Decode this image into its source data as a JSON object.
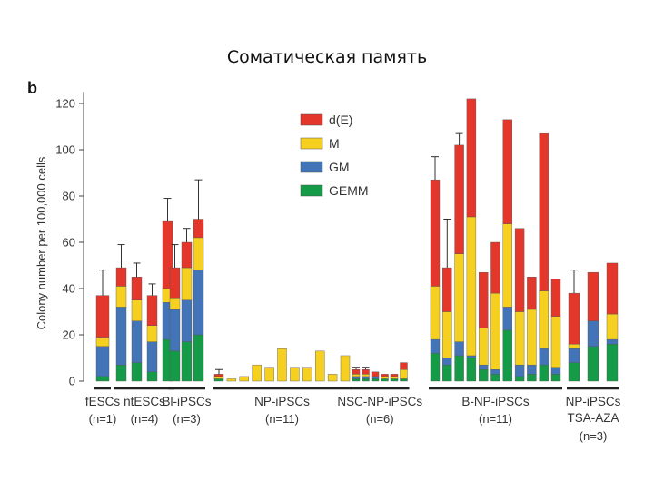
{
  "slide": {
    "title": "Соматическая память"
  },
  "chart_data": {
    "type": "bar",
    "stacked": true,
    "panel_label": "b",
    "ylabel": "Colony number per 100,000 cells",
    "ylim": [
      0,
      125
    ],
    "yticks": [
      0,
      20,
      40,
      60,
      80,
      100,
      120
    ],
    "grid": false,
    "legend_position": "top-center",
    "series": [
      {
        "name": "d(E)",
        "color": "#e2372a"
      },
      {
        "name": "M",
        "color": "#f5d020"
      },
      {
        "name": "GM",
        "color": "#4474b8"
      },
      {
        "name": "GEMM",
        "color": "#159a48"
      }
    ],
    "groups": [
      {
        "name": "fESCs",
        "n": "(n=1)",
        "bars": [
          {
            "GEMM": 2,
            "GM": 13,
            "M": 4,
            "dE": 18,
            "err": 48
          }
        ]
      },
      {
        "name": "ntESCs",
        "n": "(n=4)",
        "bars": [
          {
            "GEMM": 7,
            "GM": 25,
            "M": 9,
            "dE": 8,
            "err": 59
          },
          {
            "GEMM": 8,
            "GM": 18,
            "M": 9,
            "dE": 10,
            "err": 51
          },
          {
            "GEMM": 4,
            "GM": 13,
            "M": 7,
            "dE": 13,
            "err": 42
          },
          {
            "GEMM": 18,
            "GM": 16,
            "M": 6,
            "dE": 29,
            "err": 79
          }
        ]
      },
      {
        "name": "Bl-iPSCs",
        "n": "(n=3)",
        "bars": [
          {
            "GEMM": 13,
            "GM": 18,
            "M": 5,
            "dE": 13,
            "err": 59
          },
          {
            "GEMM": 17,
            "GM": 18,
            "M": 14,
            "dE": 11,
            "err": 66
          },
          {
            "GEMM": 20,
            "GM": 28,
            "M": 14,
            "dE": 8,
            "err": 87
          }
        ]
      },
      {
        "name": "NP-iPSCs",
        "n": "(n=11)",
        "bars": [
          {
            "GEMM": 1,
            "GM": 0,
            "M": 1,
            "dE": 1,
            "err": 5
          },
          {
            "GEMM": 0,
            "GM": 0,
            "M": 1,
            "dE": 0
          },
          {
            "GEMM": 0,
            "GM": 0,
            "M": 2,
            "dE": 0
          },
          {
            "GEMM": 0,
            "GM": 0,
            "M": 7,
            "dE": 0
          },
          {
            "GEMM": 0,
            "GM": 0,
            "M": 6,
            "dE": 0
          },
          {
            "GEMM": 0,
            "GM": 0,
            "M": 14,
            "dE": 0
          },
          {
            "GEMM": 0,
            "GM": 0,
            "M": 6,
            "dE": 0
          },
          {
            "GEMM": 0,
            "GM": 0,
            "M": 6,
            "dE": 0
          },
          {
            "GEMM": 0,
            "GM": 0,
            "M": 13,
            "dE": 0
          },
          {
            "GEMM": 0,
            "GM": 0,
            "M": 3,
            "dE": 0
          },
          {
            "GEMM": 0,
            "GM": 0,
            "M": 11,
            "dE": 0
          }
        ]
      },
      {
        "name": "NSC-NP-iPSCs",
        "n": "(n=6)",
        "bars": [
          {
            "GEMM": 1,
            "GM": 1,
            "M": 1,
            "dE": 2,
            "err": 6
          },
          {
            "GEMM": 1,
            "GM": 1,
            "M": 1,
            "dE": 2,
            "err": 6
          },
          {
            "GEMM": 1,
            "GM": 1,
            "M": 0,
            "dE": 2
          },
          {
            "GEMM": 1,
            "GM": 0,
            "M": 1,
            "dE": 1
          },
          {
            "GEMM": 1,
            "GM": 0,
            "M": 1,
            "dE": 1
          },
          {
            "GEMM": 1,
            "GM": 0,
            "M": 4,
            "dE": 3
          }
        ]
      },
      {
        "name": "B-NP-iPSCs",
        "n": "(n=11)",
        "bars": [
          {
            "GEMM": 12,
            "GM": 6,
            "M": 23,
            "dE": 46,
            "err": 97
          },
          {
            "GEMM": 7,
            "GM": 3,
            "M": 20,
            "dE": 19,
            "err": 70
          },
          {
            "GEMM": 11,
            "GM": 6,
            "M": 38,
            "dE": 47,
            "err": 107
          },
          {
            "GEMM": 10,
            "GM": 1,
            "M": 60,
            "dE": 51
          },
          {
            "GEMM": 5,
            "GM": 2,
            "M": 16,
            "dE": 24
          },
          {
            "GEMM": 3,
            "GM": 2,
            "M": 33,
            "dE": 22
          },
          {
            "GEMM": 22,
            "GM": 10,
            "M": 36,
            "dE": 45
          },
          {
            "GEMM": 2,
            "GM": 5,
            "M": 23,
            "dE": 36
          },
          {
            "GEMM": 3,
            "GM": 4,
            "M": 24,
            "dE": 14
          },
          {
            "GEMM": 7,
            "GM": 7,
            "M": 25,
            "dE": 68
          },
          {
            "GEMM": 3,
            "GM": 3,
            "M": 22,
            "dE": 16
          }
        ]
      },
      {
        "name": "NP-iPSCs",
        "name2": "TSA-AZA",
        "n": "(n=3)",
        "bars": [
          {
            "GEMM": 8,
            "GM": 6,
            "M": 2,
            "dE": 22,
            "err": 48
          },
          {
            "GEMM": 15,
            "GM": 11,
            "M": 0,
            "dE": 21
          },
          {
            "GEMM": 16,
            "GM": 2,
            "M": 11,
            "dE": 22
          }
        ]
      }
    ]
  }
}
